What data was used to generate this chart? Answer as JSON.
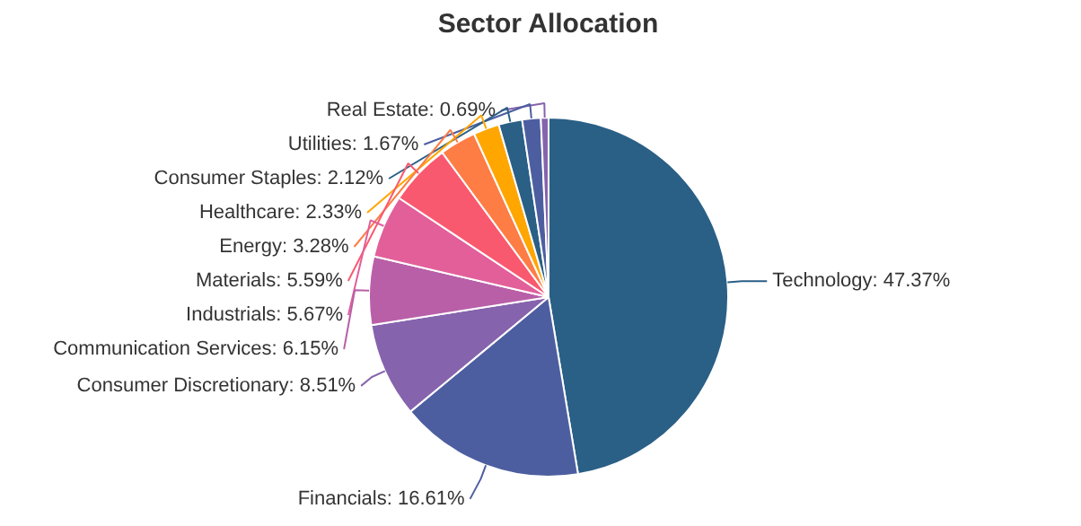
{
  "chart_data": {
    "type": "pie",
    "title": "Sector Allocation",
    "categories": [
      "Technology",
      "Financials",
      "Consumer Discretionary",
      "Communication Services",
      "Industrials",
      "Materials",
      "Energy",
      "Healthcare",
      "Consumer Staples",
      "Utilities",
      "Real Estate"
    ],
    "values": [
      47.37,
      16.61,
      8.51,
      6.15,
      5.67,
      5.59,
      3.28,
      2.33,
      2.12,
      1.67,
      0.69
    ],
    "colors": [
      "#2a5f86",
      "#4d5ea0",
      "#8663ad",
      "#b95fa8",
      "#e25f9a",
      "#f9596f",
      "#fd7d45",
      "#ffa600",
      "#2a5f86",
      "#4d5ea0",
      "#8663ad"
    ],
    "value_labels": [
      "47.37%",
      "16.61%",
      "8.51%",
      "6.15%",
      "5.67%",
      "5.59%",
      "3.28%",
      "2.33%",
      "2.12%",
      "1.67%",
      "0.69%"
    ]
  }
}
